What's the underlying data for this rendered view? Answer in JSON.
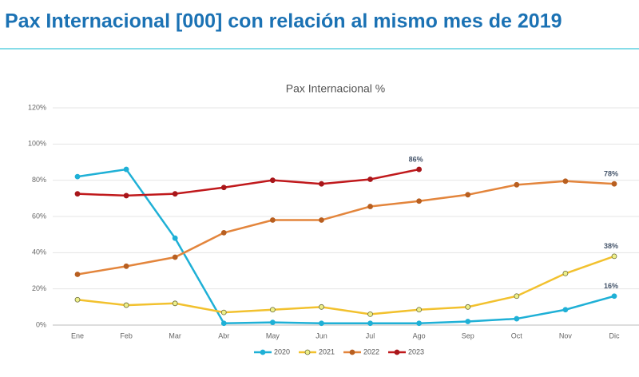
{
  "header": {
    "title": "Pax Internacional [000] con relación al mismo mes de 2019"
  },
  "chart_data": {
    "type": "line",
    "title": "Pax Internacional %",
    "categories": [
      "Ene",
      "Feb",
      "Mar",
      "Abr",
      "May",
      "Jun",
      "Jul",
      "Ago",
      "Sep",
      "Oct",
      "Nov",
      "Dic"
    ],
    "ylim": [
      0,
      120
    ],
    "yticks": [
      {
        "value": 0,
        "label": "0%"
      },
      {
        "value": 20,
        "label": "20%"
      },
      {
        "value": 40,
        "label": "40%"
      },
      {
        "value": 60,
        "label": "60%"
      },
      {
        "value": 80,
        "label": "80%"
      },
      {
        "value": 100,
        "label": "100%"
      },
      {
        "value": 120,
        "label": "120%"
      }
    ],
    "grid": true,
    "legend": "bottom",
    "series": [
      {
        "name": "2020",
        "color": "#1fb0d6",
        "marker": "#1fb0d6",
        "values": [
          82,
          86,
          48,
          1,
          1.5,
          1,
          1,
          1,
          2,
          3.5,
          8.5,
          16
        ],
        "value_labels": [
          null,
          null,
          null,
          null,
          null,
          null,
          null,
          null,
          null,
          null,
          null,
          "16%"
        ]
      },
      {
        "name": "2021",
        "color": "#f2c12e",
        "marker": "#eef08a",
        "values": [
          14,
          11,
          12,
          7,
          8.5,
          10,
          6,
          8.5,
          10,
          16,
          28.5,
          38
        ],
        "value_labels": [
          null,
          null,
          null,
          null,
          null,
          null,
          null,
          null,
          null,
          null,
          null,
          "38%"
        ]
      },
      {
        "name": "2022",
        "color": "#e3853c",
        "marker": "#b85f20",
        "values": [
          28,
          32.5,
          37.5,
          51,
          58,
          58,
          65.5,
          68.5,
          72,
          77.5,
          79.5,
          78
        ],
        "value_labels": [
          null,
          null,
          null,
          null,
          null,
          null,
          null,
          null,
          null,
          null,
          null,
          "78%"
        ]
      },
      {
        "name": "2023",
        "color": "#c0191c",
        "marker": "#a8161a",
        "values": [
          72.5,
          71.5,
          72.5,
          76,
          80,
          78,
          80.5,
          86,
          null,
          null,
          null,
          null
        ],
        "value_labels": [
          null,
          null,
          null,
          null,
          null,
          null,
          null,
          "86%",
          null,
          null,
          null,
          null
        ]
      }
    ]
  }
}
